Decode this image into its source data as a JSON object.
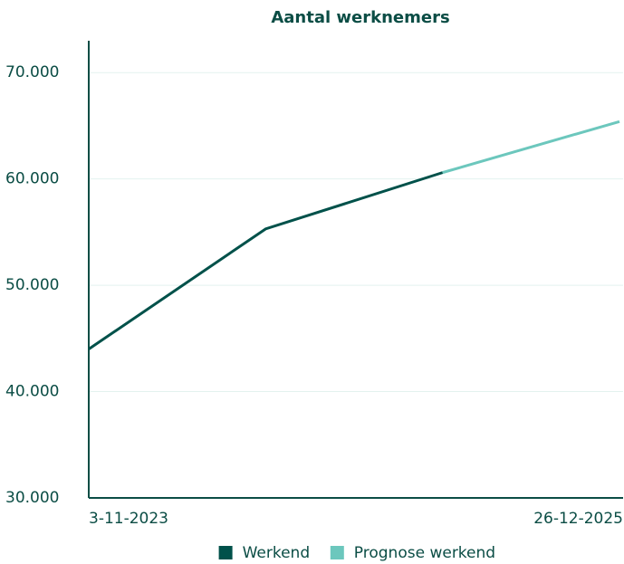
{
  "chart_data": {
    "type": "line",
    "title": "Aantal werknemers",
    "categories": [
      "3-11-2023",
      null,
      null,
      "26-12-2025"
    ],
    "series": [
      {
        "name": "Werkend",
        "color": "#00514a",
        "values": [
          44000,
          55300,
          60600,
          null
        ]
      },
      {
        "name": "Prognose werkend",
        "color": "#6cc7bd",
        "values": [
          null,
          null,
          60600,
          65400
        ]
      }
    ],
    "ylim": [
      30000,
      73000
    ],
    "yticks": [
      {
        "value": 30000,
        "label": "30.000"
      },
      {
        "value": 40000,
        "label": "40.000"
      },
      {
        "value": 50000,
        "label": "50.000"
      },
      {
        "value": 60000,
        "label": "60.000"
      },
      {
        "value": 70000,
        "label": "70.000"
      }
    ],
    "grid": true,
    "legend": "bottom"
  }
}
